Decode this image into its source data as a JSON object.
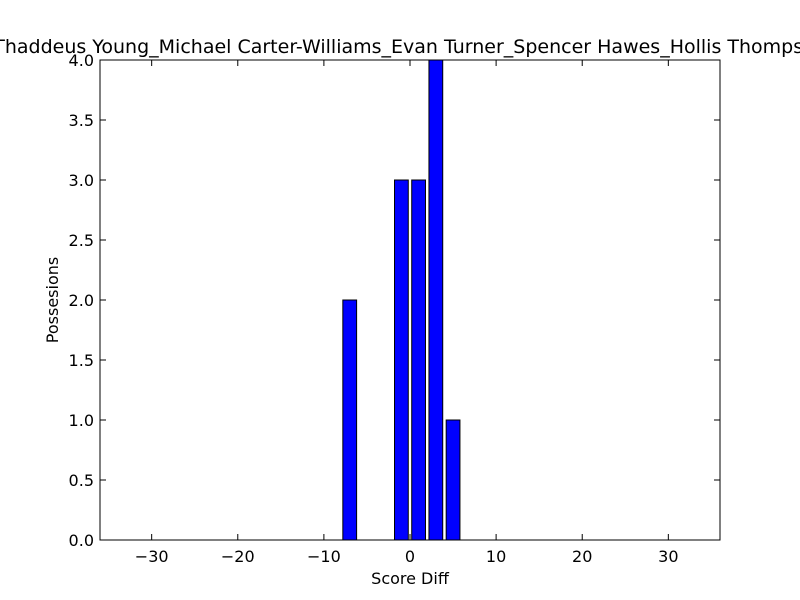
{
  "chart_data": {
    "type": "bar",
    "title": "Thaddeus Young_Michael Carter-Williams_Evan Turner_Spencer Hawes_Hollis Thompson",
    "xlabel": "Score Diff",
    "ylabel": "Possesions",
    "xlim": [
      -36,
      36
    ],
    "ylim": [
      0,
      4
    ],
    "x_ticks": [
      "−30",
      "−20",
      "−10",
      "0",
      "10",
      "20",
      "30"
    ],
    "x_tick_values": [
      -30,
      -20,
      -10,
      0,
      10,
      20,
      30
    ],
    "y_ticks": [
      "0.0",
      "0.5",
      "1.0",
      "1.5",
      "2.0",
      "2.5",
      "3.0",
      "3.5",
      "4.0"
    ],
    "y_tick_values": [
      0,
      0.5,
      1,
      1.5,
      2,
      2.5,
      3,
      3.5,
      4
    ],
    "x": [
      -7,
      -1,
      1,
      3,
      5
    ],
    "values": [
      2,
      3,
      3,
      4,
      1
    ],
    "bar_width": 1.6,
    "bar_color": "#0000ff",
    "edge_color": "#000000",
    "grid": false,
    "legend": "none"
  }
}
